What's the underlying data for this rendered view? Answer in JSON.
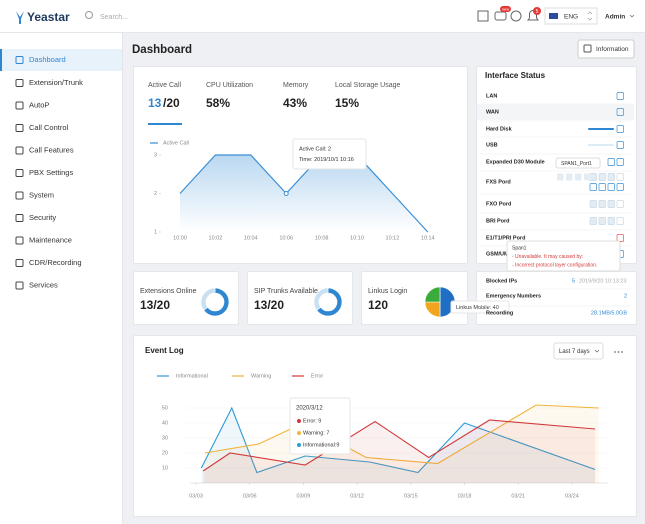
{
  "header": {
    "logo": "Yeastar",
    "search_placeholder": "Search...",
    "new_badge": "new",
    "notification_badge": "5",
    "language": "ENG",
    "user": "Admin"
  },
  "sidebar": {
    "items": [
      "Dashboard",
      "Extension/Trunk",
      "AutoP",
      "Call Control",
      "Call Features",
      "PBX Settings",
      "System",
      "Security",
      "Maintenance",
      "CDR/Recording",
      "Services"
    ]
  },
  "page": {
    "title": "Dashboard",
    "info_button": "Information"
  },
  "resources": [
    {
      "label": "Active Call",
      "value": "13",
      "suffix": "/20"
    },
    {
      "label": "CPU Utilization",
      "value": "58%"
    },
    {
      "label": "Memory",
      "value": "43%"
    },
    {
      "label": "Local Storage Usage",
      "value": "15%"
    }
  ],
  "chart_data": [
    {
      "type": "line",
      "categories": [
        "10:00",
        "10:02",
        "10:04",
        "10:06",
        "10:08",
        "10:10",
        "10:12",
        "10:14"
      ],
      "series": [
        {
          "name": "Active Call",
          "color": "#3a8fd6",
          "values": [
            2,
            3,
            3,
            2,
            3,
            3,
            2,
            1
          ]
        }
      ],
      "ylim": [
        1,
        3.4
      ],
      "yticks": [
        1,
        2,
        3
      ],
      "tooltip": [
        "Active Call: 2",
        "Time: 2019/10/1 10:16"
      ]
    },
    {
      "type": "donut",
      "title": "Extensions Online",
      "value_label": "13/20",
      "values": [
        13,
        7
      ],
      "colors": [
        "#2f86d1",
        "#c8e0f2"
      ]
    },
    {
      "type": "donut",
      "title": "SIP Trunks Available",
      "value_label": "13/20",
      "values": [
        13,
        7
      ],
      "colors": [
        "#2f86d1",
        "#c8e0f2"
      ]
    },
    {
      "type": "pie",
      "title": "Linkus Login",
      "value_label": "120",
      "values": [
        60,
        30,
        30
      ],
      "colors": [
        "#1f6fc5",
        "#f0a51f",
        "#3bab3b"
      ],
      "tooltip": "Linkus Mobile: 40"
    },
    {
      "type": "line",
      "title": "Event Log",
      "range_selector": "Last 7 days",
      "xlim": [
        2.7,
        26
      ],
      "xticks": [
        {
          "value": 3,
          "label": "03/03"
        },
        {
          "value": 6,
          "label": "03/06"
        },
        {
          "value": 9,
          "label": "03/09"
        },
        {
          "value": 12,
          "label": "03/12"
        },
        {
          "value": 15,
          "label": "03/15"
        },
        {
          "value": 18,
          "label": "03/18"
        },
        {
          "value": 21,
          "label": "03/21"
        },
        {
          "value": 24,
          "label": "03/24"
        }
      ],
      "ylim": [
        0,
        55
      ],
      "yticks": [
        10,
        20,
        30,
        40,
        50
      ],
      "series": [
        {
          "name": "Informational",
          "color": "#2e9ad6",
          "x": [
            3.3,
            5,
            6.4,
            9.1,
            12.7,
            15.4,
            18,
            25.3
          ],
          "values": [
            10,
            50,
            7,
            18,
            14,
            7,
            40,
            9
          ]
        },
        {
          "name": "Warning",
          "color": "#f0b43a",
          "x": [
            3.5,
            6.5,
            9,
            12.5,
            16.5,
            22,
            25.5
          ],
          "values": [
            20,
            26,
            40,
            17,
            13,
            52,
            50
          ]
        },
        {
          "name": "Error",
          "color": "#d23a3a",
          "x": [
            3.4,
            4.9,
            9.1,
            13,
            16,
            19.4,
            25.3
          ],
          "values": [
            8,
            20,
            12,
            41,
            17,
            42,
            36
          ]
        }
      ],
      "tooltip": {
        "title": "2020/3/12",
        "lines": [
          "Error: 9",
          "Warning: 7",
          "Informational:9"
        ]
      }
    }
  ],
  "interface_status": {
    "title": "Interface Status",
    "rows": [
      "LAN",
      "WAN",
      "Hard Disk",
      "USB",
      "Expanded D30 Module",
      "FXS Pord",
      "FXO Pord",
      "BRI Pord",
      "E1/T1/PRI Pord",
      "GSM/UM"
    ],
    "port_tooltip": "SPAN1_Port1",
    "span_tooltip": [
      "Span1",
      "- Unavailable. It may caused by:",
      "- Incorrect protocol layer configuration."
    ]
  },
  "security": {
    "rows": [
      {
        "label": "Blocked IPs",
        "value": "5",
        "detail": "2019/9/20 10:13:23"
      },
      {
        "label": "Emergency Numbers",
        "value": "2"
      },
      {
        "label": "Recording",
        "value": "28.1MB/5.0GB"
      }
    ]
  }
}
